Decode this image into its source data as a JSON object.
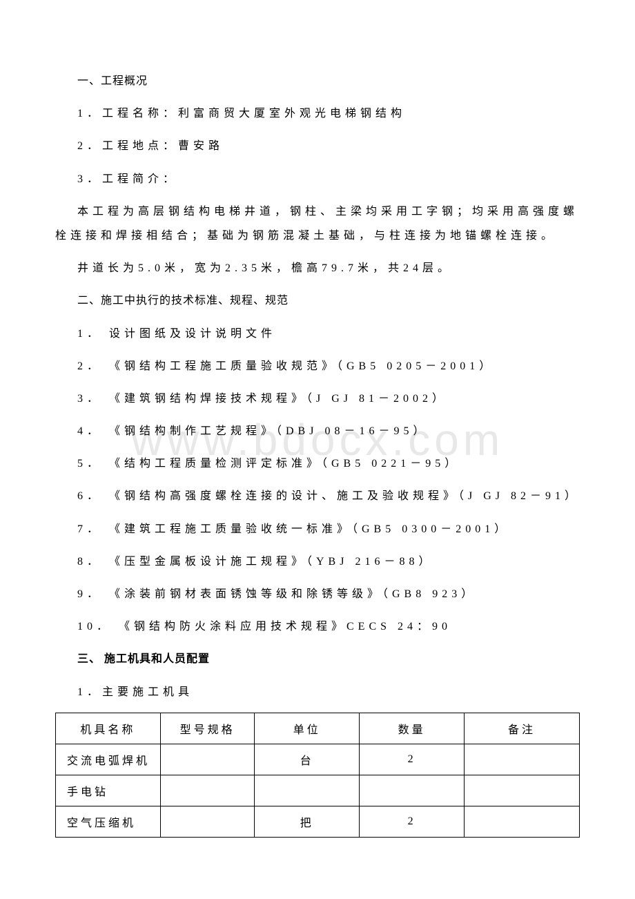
{
  "watermark": "www.bdocx.com",
  "doc": {
    "s1_title": "一、工程概况",
    "s1_p1": "1．工程名称：利富商贸大厦室外观光电梯钢结构",
    "s1_p2": "2．工程地点：曹安路",
    "s1_p3": "3．工程简介：",
    "s1_p4": "本工程为高层钢结构电梯井道，钢柱、主梁均采用工字钢；均采用高强度螺栓连接和焊接相结合；基础为钢筋混凝土基础，与柱连接为地锚螺栓连接。",
    "s1_p5": "井道长为5.0米，宽为2.35米，檐高79.7米，共24层。",
    "s2_title": "二、施工中执行的技术标准、规程、规范",
    "s2_p1": "1． 设计图纸及设计说明文件",
    "s2_p2": "2． 《钢结构工程施工质量验收规范》（GB5 0205－2001）",
    "s2_p3": "3． 《建筑钢结构焊接技术规程》（J GJ 81－2002）",
    "s2_p4": "4． 《钢结构制作工艺规程》（DBJ 08－16－95）",
    "s2_p5": "5． 《结构工程质量检测评定标准》（GB5 0221－95）",
    "s2_p6": "6． 《钢结构高强度螺栓连接的设计、施工及验收规程》（J GJ 82－91）",
    "s2_p7": "7． 《建筑工程施工质量验收统一标准》（GB5 0300－2001）",
    "s2_p8": "8． 《压型金属板设计施工规程》（YBJ 216－88）",
    "s2_p9": "9． 《涂装前钢材表面锈蚀等级和除锈等级》（GB8 923）",
    "s2_p10": "10． 《钢结构防火涂料应用技术规程》CECS 24：90",
    "s3_title": "三、 施工机具和人员配置",
    "s3_p1": "1．主要施工机具"
  },
  "table": {
    "headers": [
      "机具名称",
      "型号规格",
      "单位",
      "数量",
      "备注"
    ],
    "rows": [
      [
        "交流电弧焊机",
        "",
        "台",
        "2",
        ""
      ],
      [
        "手电钻",
        "",
        "",
        "",
        ""
      ],
      [
        "空气压缩机",
        "",
        "把",
        "2",
        ""
      ]
    ],
    "col_pct": [
      "20%",
      "18%",
      "20%",
      "20%",
      "22%"
    ]
  },
  "style": {
    "font_size": 16,
    "text_color": "#000000",
    "background_color": "#ffffff",
    "border_color": "#000000",
    "watermark_color": "#e8e8e8"
  }
}
